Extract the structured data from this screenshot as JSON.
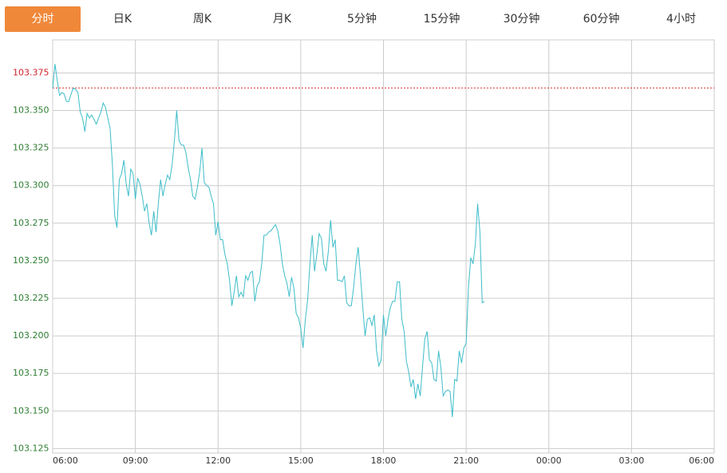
{
  "tabs": [
    "分时",
    "日K",
    "周K",
    "月K",
    "5分钟",
    "15分钟",
    "30分钟",
    "60分钟",
    "4小时"
  ],
  "active_tab": 0,
  "chart_data": {
    "type": "line",
    "x": [
      "06:00",
      "06:05",
      "06:10",
      "06:15",
      "06:20",
      "06:25",
      "06:30",
      "06:35",
      "06:40",
      "06:45",
      "06:50",
      "06:55",
      "07:00",
      "07:05",
      "07:10",
      "07:15",
      "07:20",
      "07:25",
      "07:30",
      "07:35",
      "07:40",
      "07:45",
      "07:50",
      "07:55",
      "08:00",
      "08:05",
      "08:10",
      "08:15",
      "08:20",
      "08:25",
      "08:30",
      "08:35",
      "08:40",
      "08:45",
      "08:50",
      "08:55",
      "09:00",
      "09:05",
      "09:10",
      "09:15",
      "09:20",
      "09:25",
      "09:30",
      "09:35",
      "09:40",
      "09:45",
      "09:50",
      "09:55",
      "10:00",
      "10:05",
      "10:10",
      "10:15",
      "10:20",
      "10:25",
      "10:30",
      "10:35",
      "10:40",
      "10:45",
      "10:50",
      "10:55",
      "11:00",
      "11:05",
      "11:10",
      "11:15",
      "11:20",
      "11:25",
      "11:30",
      "11:35",
      "11:40",
      "11:45",
      "11:50",
      "11:55",
      "12:00",
      "12:05",
      "12:10",
      "12:15",
      "12:20",
      "12:25",
      "12:30",
      "12:35",
      "12:40",
      "12:45",
      "12:50",
      "12:55",
      "13:00",
      "13:05",
      "13:10",
      "13:15",
      "13:20",
      "13:25",
      "13:30",
      "13:35",
      "13:40",
      "13:45",
      "13:50",
      "13:55",
      "14:00",
      "14:05",
      "14:10",
      "14:15",
      "14:20",
      "14:25",
      "14:30",
      "14:35",
      "14:40",
      "14:45",
      "14:50",
      "14:55",
      "15:00",
      "15:05",
      "15:10",
      "15:15",
      "15:20",
      "15:25",
      "15:30",
      "15:35",
      "15:40",
      "15:45",
      "15:50",
      "15:55",
      "16:00",
      "16:05",
      "16:10",
      "16:15",
      "16:20",
      "16:25",
      "16:30",
      "16:35",
      "16:40",
      "16:45",
      "16:50",
      "16:55",
      "17:00",
      "17:05",
      "17:10",
      "17:15",
      "17:20",
      "17:25",
      "17:30",
      "17:35",
      "17:40",
      "17:45",
      "17:50",
      "17:55",
      "18:00",
      "18:05",
      "18:10",
      "18:15",
      "18:20",
      "18:25",
      "18:30",
      "18:35",
      "18:40",
      "18:45",
      "18:50",
      "18:55",
      "19:00",
      "19:05",
      "19:10",
      "19:15",
      "19:20",
      "19:25",
      "19:30",
      "19:35",
      "19:40",
      "19:45",
      "19:50",
      "19:55",
      "20:00",
      "20:05",
      "20:10",
      "20:15",
      "20:20",
      "20:25",
      "20:30",
      "20:35",
      "20:40",
      "20:45",
      "20:50",
      "20:55",
      "21:00",
      "21:05",
      "21:10",
      "21:15",
      "21:20",
      "21:25",
      "21:30",
      "21:35",
      "21:40"
    ],
    "values": [
      103.365,
      103.381,
      103.37,
      103.36,
      103.362,
      103.361,
      103.356,
      103.356,
      103.361,
      103.365,
      103.364,
      103.362,
      103.349,
      103.345,
      103.336,
      103.348,
      103.345,
      103.347,
      103.344,
      103.341,
      103.345,
      103.349,
      103.355,
      103.352,
      103.345,
      103.338,
      103.314,
      103.28,
      103.272,
      103.304,
      103.308,
      103.317,
      103.301,
      103.293,
      103.311,
      103.308,
      103.291,
      103.305,
      103.301,
      103.293,
      103.283,
      103.288,
      103.275,
      103.267,
      103.283,
      103.269,
      103.288,
      103.304,
      103.293,
      103.301,
      103.307,
      103.304,
      103.314,
      103.33,
      103.35,
      103.33,
      103.327,
      103.327,
      103.322,
      103.312,
      103.304,
      103.293,
      103.291,
      103.299,
      103.309,
      103.325,
      103.302,
      103.3,
      103.299,
      103.293,
      103.288,
      103.267,
      103.276,
      103.264,
      103.264,
      103.254,
      103.248,
      103.237,
      103.22,
      103.229,
      103.24,
      103.226,
      103.229,
      103.226,
      103.24,
      103.237,
      103.242,
      103.243,
      103.223,
      103.233,
      103.236,
      103.248,
      103.267,
      103.267,
      103.269,
      103.27,
      103.272,
      103.274,
      103.27,
      103.261,
      103.248,
      103.24,
      103.235,
      103.226,
      103.239,
      103.232,
      103.215,
      103.212,
      103.205,
      103.192,
      103.211,
      103.224,
      103.248,
      103.267,
      103.243,
      103.254,
      103.268,
      103.265,
      103.248,
      103.243,
      103.256,
      103.277,
      103.259,
      103.264,
      103.237,
      103.237,
      103.236,
      103.24,
      103.222,
      103.22,
      103.22,
      103.232,
      103.248,
      103.259,
      103.24,
      103.219,
      103.2,
      103.211,
      103.212,
      103.207,
      103.214,
      103.19,
      103.18,
      103.184,
      103.214,
      103.2,
      103.211,
      103.219,
      103.223,
      103.223,
      103.236,
      103.236,
      103.211,
      103.203,
      103.183,
      103.176,
      103.166,
      103.171,
      103.158,
      103.168,
      103.16,
      103.179,
      103.198,
      103.203,
      103.184,
      103.182,
      103.171,
      103.17,
      103.19,
      103.179,
      103.16,
      103.163,
      103.164,
      103.163,
      103.146,
      103.171,
      103.17,
      103.19,
      103.182,
      103.192,
      103.195,
      103.232,
      103.252,
      103.248,
      103.261,
      103.288,
      103.269,
      103.222,
      103.223
    ],
    "color": "#3dbdc9",
    "ref_line": 103.365,
    "ref_color": "#e0302a",
    "up_color": "#d0212a",
    "down_color": "#2e7d32",
    "ylim": [
      103.122,
      103.397
    ],
    "yticks": [
      103.125,
      {
        "value": 103.15,
        "label": "103.150"
      },
      103.175,
      {
        "value": 103.2,
        "label": "103.200"
      },
      103.225,
      {
        "value": 103.25,
        "label": "103.250"
      },
      103.275,
      {
        "value": 103.3,
        "label": "103.300"
      },
      103.325,
      {
        "value": 103.35,
        "label": "103.350"
      },
      103.375
    ],
    "xticks": [
      "06:00",
      "09:00",
      "12:00",
      "15:00",
      "18:00",
      "21:00",
      "00:00",
      "03:00",
      "06:00"
    ],
    "grid": true
  }
}
